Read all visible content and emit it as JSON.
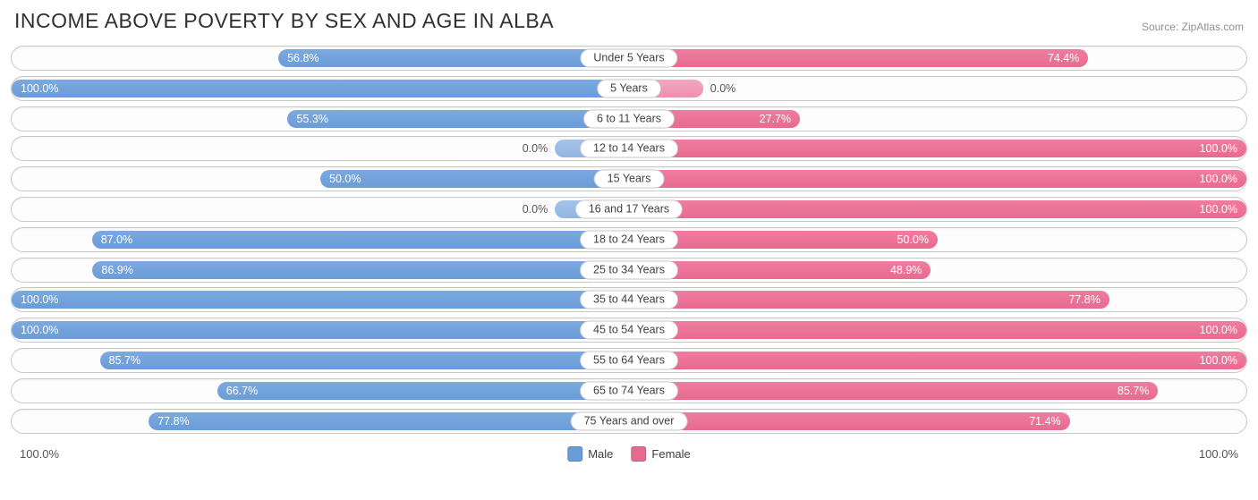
{
  "title": "INCOME ABOVE POVERTY BY SEX AND AGE IN ALBA",
  "source": "Source: ZipAtlas.com",
  "colors": {
    "male": "#6a9cd8",
    "female": "#e86a91",
    "male_light": "#92b6e2",
    "female_light": "#ee8fb0",
    "text_light": "#555555",
    "text_white": "#ffffff",
    "border": "#c8c8c8",
    "bg": "#ffffff"
  },
  "axis": {
    "left_label": "100.0%",
    "right_label": "100.0%"
  },
  "legend": {
    "male": "Male",
    "female": "Female"
  },
  "label_threshold_inside": 15.0,
  "zero_bar_min_pct": 12.0,
  "rows": [
    {
      "age": "Under 5 Years",
      "male": 56.8,
      "female": 74.4
    },
    {
      "age": "5 Years",
      "male": 100.0,
      "female": 0.0
    },
    {
      "age": "6 to 11 Years",
      "male": 55.3,
      "female": 27.7
    },
    {
      "age": "12 to 14 Years",
      "male": 0.0,
      "female": 100.0
    },
    {
      "age": "15 Years",
      "male": 50.0,
      "female": 100.0
    },
    {
      "age": "16 and 17 Years",
      "male": 0.0,
      "female": 100.0
    },
    {
      "age": "18 to 24 Years",
      "male": 87.0,
      "female": 50.0
    },
    {
      "age": "25 to 34 Years",
      "male": 86.9,
      "female": 48.9
    },
    {
      "age": "35 to 44 Years",
      "male": 100.0,
      "female": 77.8
    },
    {
      "age": "45 to 54 Years",
      "male": 100.0,
      "female": 100.0
    },
    {
      "age": "55 to 64 Years",
      "male": 85.7,
      "female": 100.0
    },
    {
      "age": "65 to 74 Years",
      "male": 66.7,
      "female": 85.7
    },
    {
      "age": "75 Years and over",
      "male": 77.8,
      "female": 71.4
    }
  ]
}
